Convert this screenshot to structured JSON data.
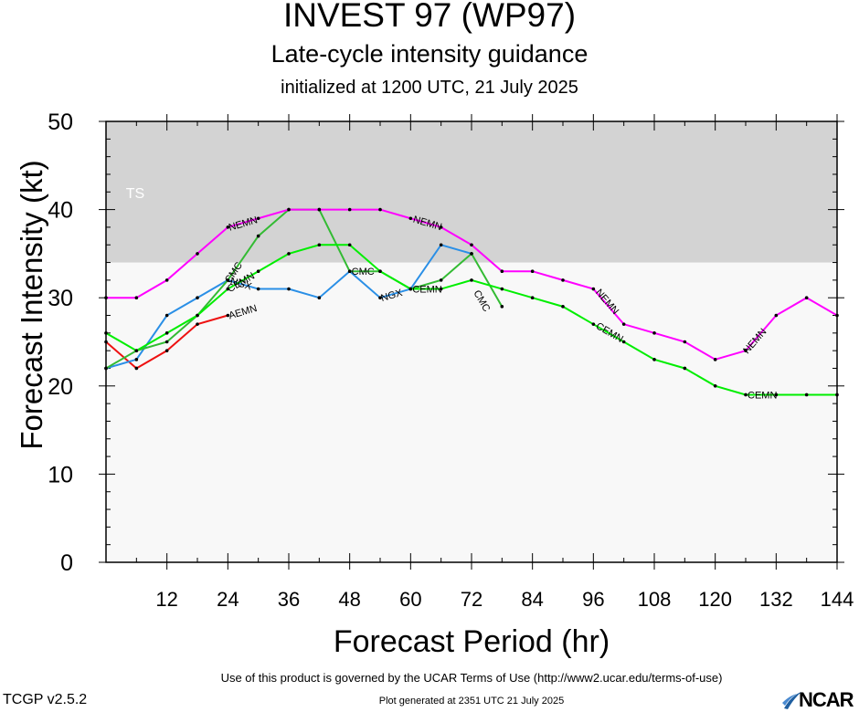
{
  "header": {
    "title": "INVEST 97 (WP97)",
    "subtitle": "Late-cycle intensity guidance",
    "init": "initialized at 1200 UTC, 21 July 2025"
  },
  "footer": {
    "terms": "Use of this product is governed by the UCAR Terms of Use (http://www2.ucar.edu/terms-of-use)",
    "version": "TCGP v2.5.2",
    "generated": "Plot generated at 2351 UTC   21 July 2025",
    "logo": "NCAR"
  },
  "chart_data": {
    "type": "line",
    "xlabel": "Forecast Period (hr)",
    "ylabel": "Forecast Intensity (kt)",
    "xlim": [
      0,
      144
    ],
    "ylim": [
      0,
      50
    ],
    "xticks": [
      12,
      24,
      36,
      48,
      60,
      72,
      84,
      96,
      108,
      120,
      132,
      144
    ],
    "yticks": [
      0,
      10,
      20,
      30,
      40,
      50
    ],
    "grid": false,
    "bands": [
      {
        "label": "TS",
        "from": 34,
        "to": 50,
        "color": "#d3d3d3"
      }
    ],
    "plot_bg": "#f8f8f8",
    "series": [
      {
        "name": "NEMN",
        "color": "#ff00ff",
        "x": [
          0,
          6,
          12,
          18,
          24,
          30,
          36,
          42,
          48,
          54,
          60,
          66,
          72,
          78,
          84,
          90,
          96,
          102,
          108,
          114,
          120,
          126,
          132,
          138,
          144
        ],
        "y": [
          30,
          30,
          32,
          35,
          38,
          39,
          40,
          40,
          40,
          40,
          39,
          38,
          36,
          33,
          33,
          32,
          31,
          27,
          26,
          25,
          23,
          24,
          28,
          30,
          28
        ],
        "labels": [
          {
            "text": "NEMN",
            "x": 24,
            "y": 38
          },
          {
            "text": "NEMN",
            "x": 60,
            "y": 39
          },
          {
            "text": "NEMN",
            "x": 96,
            "y": 31
          },
          {
            "text": "NEMN",
            "x": 126,
            "y": 24
          }
        ]
      },
      {
        "name": "CEMN",
        "color": "#00ee00",
        "x": [
          0,
          6,
          12,
          18,
          24,
          30,
          36,
          42,
          48,
          54,
          60,
          66,
          72,
          78,
          84,
          90,
          96,
          102,
          108,
          114,
          120,
          126,
          132,
          138,
          144
        ],
        "y": [
          26,
          24,
          26,
          28,
          31,
          33,
          35,
          36,
          36,
          33,
          31,
          31,
          32,
          31,
          30,
          29,
          27,
          25,
          23,
          22,
          20,
          19,
          19,
          19,
          19
        ],
        "labels": [
          {
            "text": "CEMN",
            "x": 24,
            "y": 31
          },
          {
            "text": "CEMN",
            "x": 60,
            "y": 31
          },
          {
            "text": "CEMN",
            "x": 96,
            "y": 27
          },
          {
            "text": "CEMN",
            "x": 126,
            "y": 19
          }
        ]
      },
      {
        "name": "CMC",
        "color": "#33bb33",
        "x": [
          0,
          6,
          12,
          18,
          24,
          30,
          36,
          42,
          48,
          54,
          60,
          66,
          72,
          78
        ],
        "y": [
          22,
          24,
          25,
          28,
          32,
          37,
          40,
          40,
          33,
          33,
          31,
          32,
          35,
          29
        ],
        "labels": [
          {
            "text": "CMC",
            "x": 24,
            "y": 32
          },
          {
            "text": "CMC",
            "x": 48,
            "y": 33
          },
          {
            "text": "CMC",
            "x": 72,
            "y": 31
          }
        ]
      },
      {
        "name": "NGX",
        "color": "#2a8fe6",
        "x": [
          0,
          6,
          12,
          18,
          24,
          30,
          36,
          42,
          48,
          54,
          60,
          66,
          72
        ],
        "y": [
          22,
          23,
          28,
          30,
          32,
          31,
          31,
          30,
          33,
          30,
          31,
          36,
          35
        ],
        "labels": [
          {
            "text": "NGX",
            "x": 24,
            "y": 32
          },
          {
            "text": "NGX",
            "x": 54,
            "y": 30
          }
        ]
      },
      {
        "name": "AEMN",
        "color": "#ee1111",
        "x": [
          0,
          6,
          12,
          18,
          24
        ],
        "y": [
          25,
          22,
          24,
          27,
          28
        ],
        "labels": [
          {
            "text": "AEMN",
            "x": 24,
            "y": 28
          }
        ]
      }
    ]
  }
}
